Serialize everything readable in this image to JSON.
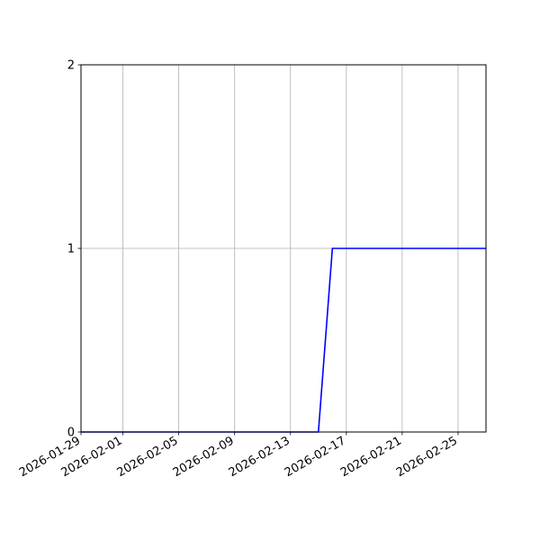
{
  "chart_data": {
    "type": "line",
    "title": "",
    "xlabel": "",
    "ylabel": "",
    "x_type": "date",
    "xlim": [
      "2026-01-29",
      "2026-02-27"
    ],
    "ylim": [
      0,
      2
    ],
    "grid": true,
    "x_ticks": [
      "2026-01-29",
      "2026-02-01",
      "2026-02-05",
      "2026-02-09",
      "2026-02-13",
      "2026-02-17",
      "2026-02-21",
      "2026-02-25"
    ],
    "y_ticks": [
      0,
      1,
      2
    ],
    "series": [
      {
        "color": "#0000ff",
        "x": [
          "2026-01-29",
          "2026-01-30",
          "2026-01-31",
          "2026-02-01",
          "2026-02-02",
          "2026-02-03",
          "2026-02-04",
          "2026-02-05",
          "2026-02-06",
          "2026-02-07",
          "2026-02-08",
          "2026-02-09",
          "2026-02-10",
          "2026-02-11",
          "2026-02-12",
          "2026-02-13",
          "2026-02-14",
          "2026-02-15",
          "2026-02-16",
          "2026-02-17",
          "2026-02-18",
          "2026-02-19",
          "2026-02-20",
          "2026-02-21",
          "2026-02-22",
          "2026-02-23",
          "2026-02-24",
          "2026-02-25",
          "2026-02-26",
          "2026-02-27"
        ],
        "y": [
          0,
          0,
          0,
          0,
          0,
          0,
          0,
          0,
          0,
          0,
          0,
          0,
          0,
          0,
          0,
          0,
          0,
          0,
          1,
          1,
          1,
          1,
          1,
          1,
          1,
          1,
          1,
          1,
          1,
          1
        ]
      }
    ]
  }
}
